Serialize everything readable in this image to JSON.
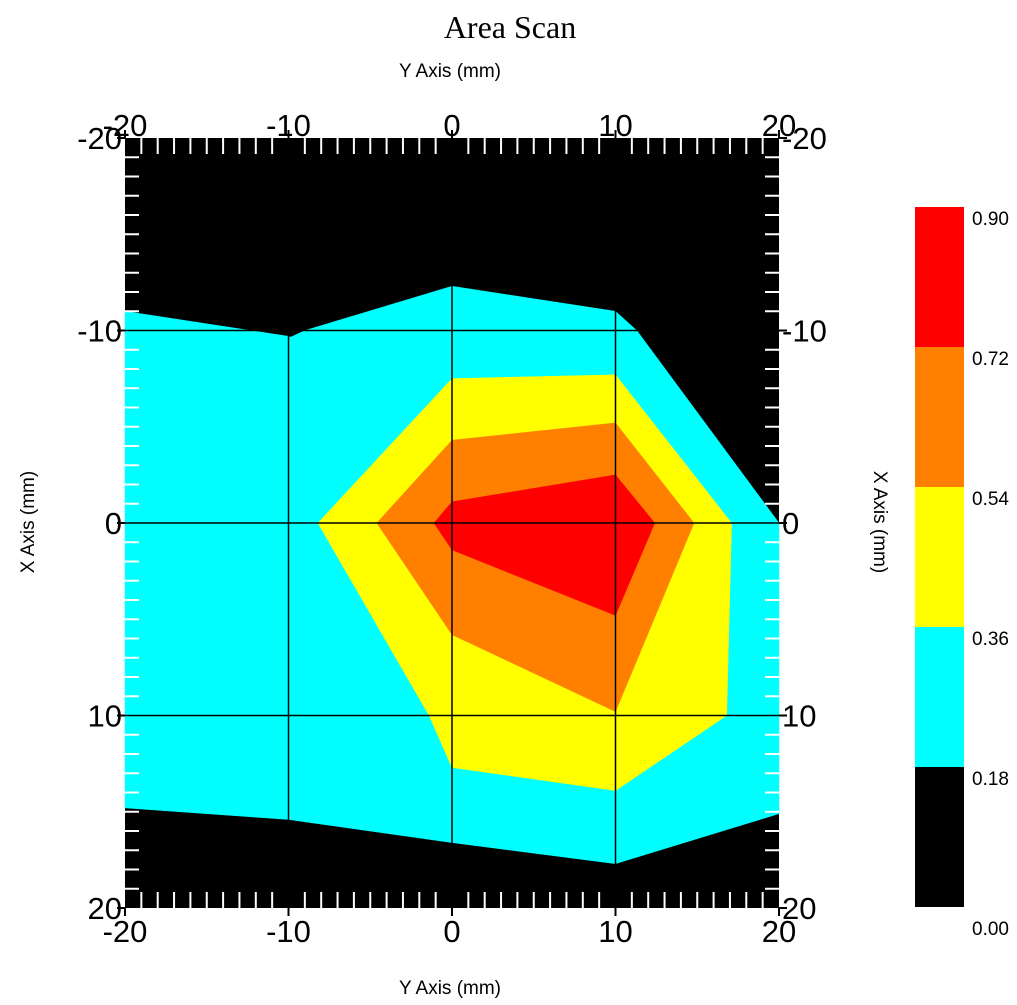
{
  "chart_data": {
    "type": "heatmap",
    "subtype": "filled contour",
    "title": "Area Scan",
    "x_axis_label": "Y Axis (mm)",
    "y_axis_label": "X Axis (mm)",
    "x_range": [
      -20,
      20
    ],
    "y_range": [
      -20,
      20
    ],
    "y_inverted": true,
    "x_ticks": [
      -20,
      -10,
      0,
      10,
      20
    ],
    "y_ticks": [
      -20,
      -10,
      0,
      10,
      20
    ],
    "grid": true,
    "legend_position": "right",
    "colorbar": {
      "levels": [
        0.0,
        0.18,
        0.36,
        0.54,
        0.72,
        0.9
      ],
      "labels": [
        "0.00",
        "0.18",
        "0.36",
        "0.54",
        "0.72",
        "0.90"
      ],
      "colors": [
        "#000000",
        "#00ffff",
        "#ffff00",
        "#ff8000",
        "#ff0000"
      ]
    },
    "contours": [
      {
        "level": "0.18 - 0.36",
        "color": "#00ffff",
        "points": [
          [
            -20,
            -11
          ],
          [
            -10,
            -9.7
          ],
          [
            -9.7,
            -9.6
          ],
          [
            -10,
            -9.6
          ],
          [
            -9,
            -10
          ],
          [
            0,
            -12.3
          ],
          [
            10,
            -11
          ],
          [
            11.3,
            -10
          ],
          [
            20,
            0
          ],
          [
            20,
            15.1
          ],
          [
            10,
            17.7
          ],
          [
            0,
            16.6
          ],
          [
            -10,
            15.4
          ],
          [
            -20,
            14.8
          ]
        ]
      },
      {
        "level": "0.36 - 0.54",
        "color": "#ffff00",
        "points": [
          [
            0,
            -7.5
          ],
          [
            10,
            -7.7
          ],
          [
            17.1,
            0
          ],
          [
            16.8,
            10
          ],
          [
            10,
            13.9
          ],
          [
            0,
            12.7
          ],
          [
            -1.4,
            10
          ],
          [
            -8.2,
            0
          ]
        ]
      },
      {
        "level": "0.54 - 0.72",
        "color": "#ff8000",
        "points": [
          [
            0,
            -4.3
          ],
          [
            10,
            -5.2
          ],
          [
            14.8,
            0
          ],
          [
            10,
            9.8
          ],
          [
            0,
            5.8
          ],
          [
            -4.6,
            0
          ]
        ]
      },
      {
        "level": "0.72 - 0.90",
        "color": "#ff0000",
        "points": [
          [
            0,
            -1.1
          ],
          [
            10,
            -2.5
          ],
          [
            12.4,
            0
          ],
          [
            10,
            4.8
          ],
          [
            0,
            1.4
          ],
          [
            -1.1,
            0
          ]
        ]
      }
    ]
  }
}
